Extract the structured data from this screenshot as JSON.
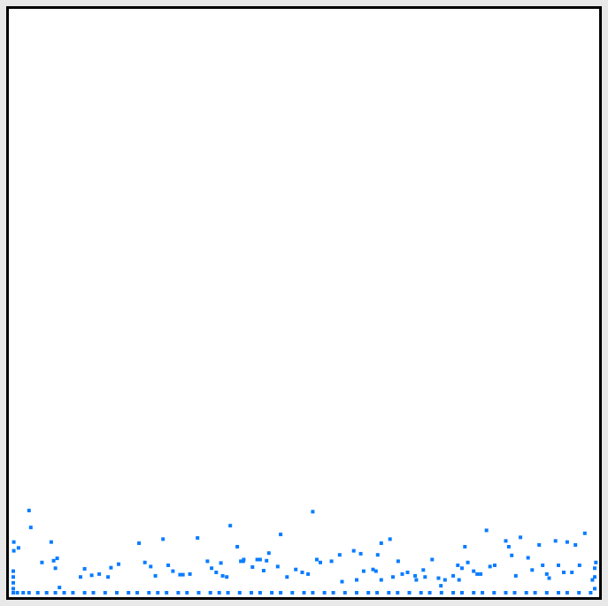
{
  "chart_data": {
    "type": "scatter",
    "title": "",
    "xlabel": "",
    "ylabel": "",
    "grid": false,
    "legend": "none",
    "marker": "square",
    "color": "#0a7cff",
    "xlim": [
      0,
      1
    ],
    "ylim": [
      0,
      1
    ],
    "series": [
      {
        "points": [
          [
            0.003,
            0.003
          ],
          [
            0.01,
            0.003
          ],
          [
            0.02,
            0.003
          ],
          [
            0.03,
            0.003
          ],
          [
            0.045,
            0.003
          ],
          [
            0.06,
            0.003
          ],
          [
            0.075,
            0.003
          ],
          [
            0.09,
            0.003
          ],
          [
            0.105,
            0.003
          ],
          [
            0.125,
            0.003
          ],
          [
            0.14,
            0.003
          ],
          [
            0.16,
            0.003
          ],
          [
            0.18,
            0.003
          ],
          [
            0.2,
            0.003
          ],
          [
            0.215,
            0.003
          ],
          [
            0.235,
            0.003
          ],
          [
            0.25,
            0.003
          ],
          [
            0.265,
            0.003
          ],
          [
            0.285,
            0.003
          ],
          [
            0.3,
            0.003
          ],
          [
            0.32,
            0.003
          ],
          [
            0.34,
            0.003
          ],
          [
            0.355,
            0.003
          ],
          [
            0.37,
            0.003
          ],
          [
            0.39,
            0.003
          ],
          [
            0.41,
            0.003
          ],
          [
            0.425,
            0.003
          ],
          [
            0.445,
            0.003
          ],
          [
            0.46,
            0.003
          ],
          [
            0.48,
            0.003
          ],
          [
            0.5,
            0.003
          ],
          [
            0.515,
            0.003
          ],
          [
            0.535,
            0.003
          ],
          [
            0.55,
            0.003
          ],
          [
            0.57,
            0.003
          ],
          [
            0.59,
            0.003
          ],
          [
            0.61,
            0.003
          ],
          [
            0.625,
            0.003
          ],
          [
            0.645,
            0.003
          ],
          [
            0.66,
            0.003
          ],
          [
            0.68,
            0.003
          ],
          [
            0.7,
            0.003
          ],
          [
            0.715,
            0.003
          ],
          [
            0.735,
            0.003
          ],
          [
            0.755,
            0.003
          ],
          [
            0.77,
            0.003
          ],
          [
            0.79,
            0.003
          ],
          [
            0.805,
            0.003
          ],
          [
            0.825,
            0.003
          ],
          [
            0.845,
            0.003
          ],
          [
            0.86,
            0.003
          ],
          [
            0.88,
            0.003
          ],
          [
            0.895,
            0.003
          ],
          [
            0.915,
            0.003
          ],
          [
            0.935,
            0.003
          ],
          [
            0.95,
            0.003
          ],
          [
            0.97,
            0.003
          ],
          [
            0.99,
            0.003
          ],
          [
            0.003,
            0.01
          ],
          [
            0.003,
            0.02
          ],
          [
            0.003,
            0.03
          ],
          [
            0.003,
            0.04
          ],
          [
            0.997,
            0.01
          ],
          [
            0.997,
            0.03
          ],
          [
            0.997,
            0.045
          ],
          [
            0.004,
            0.09
          ],
          [
            0.004,
            0.075
          ],
          [
            0.012,
            0.08
          ],
          [
            0.03,
            0.144
          ],
          [
            0.033,
            0.115
          ],
          [
            0.052,
            0.055
          ],
          [
            0.068,
            0.09
          ],
          [
            0.072,
            0.058
          ],
          [
            0.075,
            0.045
          ],
          [
            0.078,
            0.062
          ],
          [
            0.082,
            0.012
          ],
          [
            0.118,
            0.03
          ],
          [
            0.125,
            0.044
          ],
          [
            0.137,
            0.033
          ],
          [
            0.15,
            0.035
          ],
          [
            0.165,
            0.03
          ],
          [
            0.17,
            0.046
          ],
          [
            0.183,
            0.052
          ],
          [
            0.218,
            0.088
          ],
          [
            0.228,
            0.055
          ],
          [
            0.238,
            0.048
          ],
          [
            0.246,
            0.032
          ],
          [
            0.259,
            0.095
          ],
          [
            0.268,
            0.05
          ],
          [
            0.276,
            0.04
          ],
          [
            0.288,
            0.034
          ],
          [
            0.293,
            0.034
          ],
          [
            0.305,
            0.035
          ],
          [
            0.318,
            0.097
          ],
          [
            0.335,
            0.057
          ],
          [
            0.342,
            0.045
          ],
          [
            0.35,
            0.038
          ],
          [
            0.358,
            0.054
          ],
          [
            0.361,
            0.032
          ],
          [
            0.368,
            0.03
          ],
          [
            0.374,
            0.118
          ],
          [
            0.386,
            0.082
          ],
          [
            0.392,
            0.057
          ],
          [
            0.396,
            0.057
          ],
          [
            0.397,
            0.06
          ],
          [
            0.412,
            0.047
          ],
          [
            0.42,
            0.06
          ],
          [
            0.425,
            0.06
          ],
          [
            0.431,
            0.041
          ],
          [
            0.436,
            0.058
          ],
          [
            0.44,
            0.071
          ],
          [
            0.455,
            0.048
          ],
          [
            0.46,
            0.103
          ],
          [
            0.471,
            0.03
          ],
          [
            0.486,
            0.043
          ],
          [
            0.497,
            0.038
          ],
          [
            0.507,
            0.035
          ],
          [
            0.515,
            0.142
          ],
          [
            0.522,
            0.06
          ],
          [
            0.528,
            0.055
          ],
          [
            0.547,
            0.057
          ],
          [
            0.561,
            0.068
          ],
          [
            0.565,
            0.022
          ],
          [
            0.585,
            0.075
          ],
          [
            0.59,
            0.025
          ],
          [
            0.597,
            0.07
          ],
          [
            0.602,
            0.04
          ],
          [
            0.618,
            0.043
          ],
          [
            0.623,
            0.04
          ],
          [
            0.626,
            0.068
          ],
          [
            0.632,
            0.088
          ],
          [
            0.632,
            0.025
          ],
          [
            0.647,
            0.095
          ],
          [
            0.652,
            0.03
          ],
          [
            0.661,
            0.057
          ],
          [
            0.668,
            0.035
          ],
          [
            0.677,
            0.038
          ],
          [
            0.69,
            0.032
          ],
          [
            0.692,
            0.025
          ],
          [
            0.704,
            0.042
          ],
          [
            0.707,
            0.03
          ],
          [
            0.719,
            0.06
          ],
          [
            0.73,
            0.028
          ],
          [
            0.734,
            0.015
          ],
          [
            0.741,
            0.025
          ],
          [
            0.755,
            0.032
          ],
          [
            0.763,
            0.05
          ],
          [
            0.765,
            0.025
          ],
          [
            0.77,
            0.045
          ],
          [
            0.775,
            0.082
          ],
          [
            0.78,
            0.055
          ],
          [
            0.79,
            0.04
          ],
          [
            0.796,
            0.035
          ],
          [
            0.802,
            0.035
          ],
          [
            0.812,
            0.11
          ],
          [
            0.818,
            0.048
          ],
          [
            0.826,
            0.05
          ],
          [
            0.845,
            0.092
          ],
          [
            0.85,
            0.082
          ],
          [
            0.855,
            0.067
          ],
          [
            0.862,
            0.032
          ],
          [
            0.87,
            0.098
          ],
          [
            0.883,
            0.063
          ],
          [
            0.89,
            0.042
          ],
          [
            0.902,
            0.085
          ],
          [
            0.908,
            0.05
          ],
          [
            0.915,
            0.035
          ],
          [
            0.919,
            0.028
          ],
          [
            0.93,
            0.092
          ],
          [
            0.935,
            0.05
          ],
          [
            0.944,
            0.038
          ],
          [
            0.95,
            0.09
          ],
          [
            0.958,
            0.038
          ],
          [
            0.964,
            0.085
          ],
          [
            0.971,
            0.05
          ],
          [
            0.98,
            0.105
          ],
          [
            0.993,
            0.025
          ],
          [
            0.999,
            0.055
          ]
        ]
      }
    ]
  }
}
